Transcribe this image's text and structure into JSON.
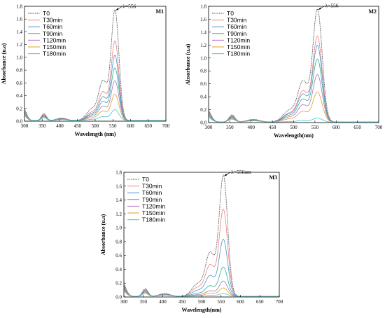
{
  "chart_data": [
    {
      "type": "line",
      "panel_label": "M1",
      "peak_label": "λ=556",
      "xlabel": "Wavelength (nm)",
      "ylabel": "Absorbance (u.a)",
      "xlim": [
        300,
        700
      ],
      "ylim": [
        0.0,
        1.8
      ],
      "xticks": [
        300,
        350,
        400,
        450,
        500,
        550,
        600,
        650,
        700
      ],
      "yticks": [
        0.0,
        0.2,
        0.4,
        0.6,
        0.8,
        1.0,
        1.2,
        1.4,
        1.6,
        1.8
      ],
      "grid": false,
      "legend": "top-left",
      "peak_scales": [
        1.73,
        1.24,
        1.02,
        0.82,
        0.62,
        0.41,
        0.17
      ],
      "series": [
        {
          "name": "T0",
          "color": "#555555"
        },
        {
          "name": "T30min",
          "color": "#f08080"
        },
        {
          "name": "T60min",
          "color": "#4f8fd0"
        },
        {
          "name": "T90min",
          "color": "#2fae92"
        },
        {
          "name": "T120min",
          "color": "#b070c0"
        },
        {
          "name": "T150min",
          "color": "#e0a020"
        },
        {
          "name": "T180min",
          "color": "#40c8d8"
        }
      ]
    },
    {
      "type": "line",
      "panel_label": "M2",
      "peak_label": "λ=556",
      "xlabel": "Wavelength(nm)",
      "ylabel": "Absorbance (u.a)",
      "xlim": [
        300,
        700
      ],
      "ylim": [
        0.0,
        1.8
      ],
      "xticks": [
        300,
        350,
        400,
        450,
        500,
        550,
        600,
        650,
        700
      ],
      "yticks": [
        0.0,
        0.2,
        0.4,
        0.6,
        0.8,
        1.0,
        1.2,
        1.4,
        1.6,
        1.8
      ],
      "grid": false,
      "legend": "top-left",
      "peak_scales": [
        1.74,
        1.32,
        1.18,
        0.97,
        0.73,
        0.46,
        0.06
      ],
      "series": [
        {
          "name": "T0",
          "color": "#555555"
        },
        {
          "name": "T30min",
          "color": "#f08080"
        },
        {
          "name": "T60min",
          "color": "#4f8fd0"
        },
        {
          "name": "T90min",
          "color": "#2fae92"
        },
        {
          "name": "T120min",
          "color": "#b070c0"
        },
        {
          "name": "T150min",
          "color": "#e0a020"
        },
        {
          "name": "T180min",
          "color": "#40c8d8"
        }
      ]
    },
    {
      "type": "line",
      "panel_label": "M3",
      "peak_label": "λ=556nm",
      "xlabel": "Wavelength(nm)",
      "ylabel": "Absorbance (u.a)",
      "xlim": [
        300,
        700
      ],
      "ylim": [
        0.0,
        1.8
      ],
      "xticks": [
        300,
        350,
        400,
        450,
        500,
        550,
        600,
        650,
        700
      ],
      "yticks": [
        0.0,
        0.2,
        0.4,
        0.6,
        0.8,
        1.0,
        1.2,
        1.4,
        1.6,
        1.8
      ],
      "grid": false,
      "legend": "top-left",
      "peak_scales": [
        1.74,
        1.25,
        0.82,
        0.42,
        0.22,
        0.12,
        0.04
      ],
      "series": [
        {
          "name": "T0",
          "color": "#555555"
        },
        {
          "name": "T30min",
          "color": "#f08080"
        },
        {
          "name": "T60min",
          "color": "#4f8fd0"
        },
        {
          "name": "T90min",
          "color": "#2fae92"
        },
        {
          "name": "T120min",
          "color": "#b070c0"
        },
        {
          "name": "T150min",
          "color": "#e0a020"
        },
        {
          "name": "T180min",
          "color": "#40c8d8"
        }
      ]
    }
  ]
}
